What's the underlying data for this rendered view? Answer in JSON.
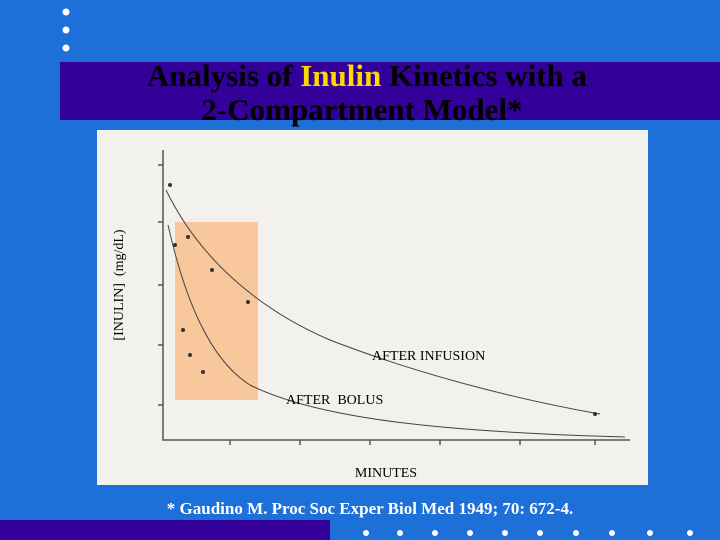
{
  "title": {
    "before": "Analysis of ",
    "highlight": "Inulin",
    "after": " Kinetics with a",
    "line2": "2-Compartment Model*"
  },
  "figure": {
    "y_label": "[INULIN]  (mg/dL)",
    "label_infusion": "AFTER INFUSION",
    "label_bolus": "AFTER  BOLUS",
    "x_label": "MINUTES"
  },
  "footnote": "* Gaudino M. Proc Soc Exper Biol Med 1949; 70: 672-4."
}
